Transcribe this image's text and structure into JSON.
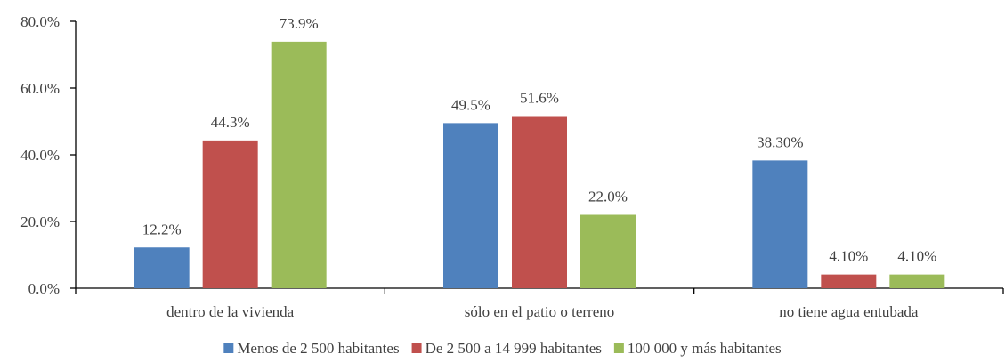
{
  "chart_data": {
    "type": "bar",
    "title": "",
    "xlabel": "",
    "ylabel": "",
    "ylim": [
      0,
      80
    ],
    "y_ticks": [
      0,
      20,
      40,
      60,
      80
    ],
    "y_tick_labels": [
      "0.0%",
      "20.0%",
      "40.0%",
      "60.0%",
      "80.0%"
    ],
    "grid": false,
    "legend_position": "bottom",
    "categories": [
      "dentro de la vivienda",
      "sólo en el patio o terreno",
      "no tiene agua entubada"
    ],
    "series": [
      {
        "name": "Menos de 2 500 habitantes",
        "color": "#4F81BD",
        "values": [
          12.2,
          49.5,
          38.3
        ],
        "labels": [
          "12.2%",
          "49.5%",
          "38.30%"
        ]
      },
      {
        "name": "De 2 500 a 14 999 habitantes",
        "color": "#C0504D",
        "values": [
          44.3,
          51.6,
          4.1
        ],
        "labels": [
          "44.3%",
          "51.6%",
          "4.10%"
        ]
      },
      {
        "name": "100 000 y más habitantes",
        "color": "#9BBB59",
        "values": [
          73.9,
          22.0,
          4.1
        ],
        "labels": [
          "73.9%",
          "22.0%",
          "4.10%"
        ]
      }
    ]
  }
}
